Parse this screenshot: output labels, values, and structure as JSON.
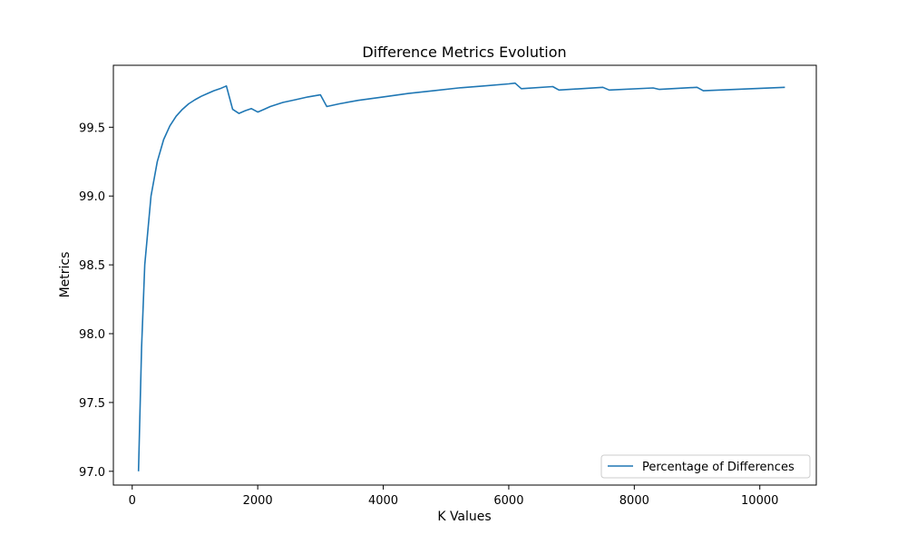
{
  "chart_data": {
    "type": "line",
    "title": "Difference Metrics Evolution",
    "xlabel": "K Values",
    "ylabel": "Metrics",
    "xlim": [
      -300,
      10900
    ],
    "ylim": [
      96.9,
      99.95
    ],
    "xticks": [
      0,
      2000,
      4000,
      6000,
      8000,
      10000
    ],
    "yticks": [
      97.0,
      97.5,
      98.0,
      98.5,
      99.0,
      99.5
    ],
    "ytick_labels": [
      "97.0",
      "97.5",
      "98.0",
      "98.5",
      "99.0",
      "99.5"
    ],
    "grid": false,
    "legend_position": "lower-right",
    "series": [
      {
        "name": "Percentage of Differences",
        "color": "#1f77b4",
        "x": [
          100,
          150,
          200,
          300,
          400,
          500,
          600,
          700,
          800,
          900,
          1000,
          1100,
          1200,
          1300,
          1400,
          1500,
          1600,
          1700,
          1800,
          1900,
          2000,
          2100,
          2200,
          2400,
          2600,
          2800,
          3000,
          3100,
          3300,
          3600,
          4000,
          4400,
          4800,
          5200,
          5600,
          6000,
          6100,
          6200,
          6700,
          6800,
          7500,
          7600,
          8300,
          8400,
          9000,
          9100,
          10400
        ],
        "y": [
          97.0,
          97.9,
          98.5,
          99.0,
          99.25,
          99.41,
          99.51,
          99.58,
          99.63,
          99.67,
          99.7,
          99.725,
          99.745,
          99.765,
          99.78,
          99.8,
          99.63,
          99.6,
          99.62,
          99.635,
          99.61,
          99.63,
          99.65,
          99.68,
          99.7,
          99.72,
          99.735,
          99.65,
          99.67,
          99.695,
          99.72,
          99.745,
          99.765,
          99.785,
          99.8,
          99.815,
          99.82,
          99.78,
          99.795,
          99.77,
          99.79,
          99.77,
          99.785,
          99.775,
          99.79,
          99.765,
          99.79
        ]
      }
    ]
  }
}
